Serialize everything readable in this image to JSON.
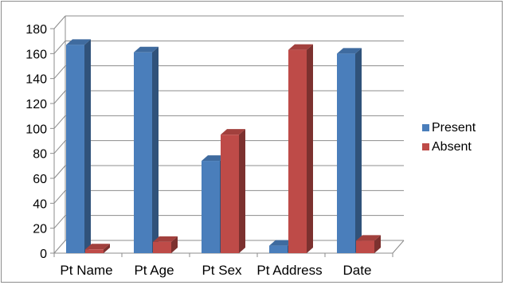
{
  "chart_data": {
    "type": "bar",
    "categories": [
      "Pt Name",
      "Pt Age",
      "Pt Sex",
      "Pt Address",
      "Date"
    ],
    "series": [
      {
        "name": "Present",
        "values": [
          167,
          161,
          74,
          6,
          160
        ],
        "color": "#4a7ebb"
      },
      {
        "name": "Absent",
        "values": [
          3,
          9,
          95,
          163,
          10
        ],
        "color": "#be4b48"
      }
    ],
    "title": "",
    "xlabel": "",
    "ylabel": "",
    "ylim": [
      0,
      180
    ],
    "yticks": [
      "0",
      "20",
      "40",
      "60",
      "80",
      "100",
      "120",
      "140",
      "160",
      "180"
    ],
    "grid": true,
    "legend": "right",
    "style": "3d-column"
  }
}
